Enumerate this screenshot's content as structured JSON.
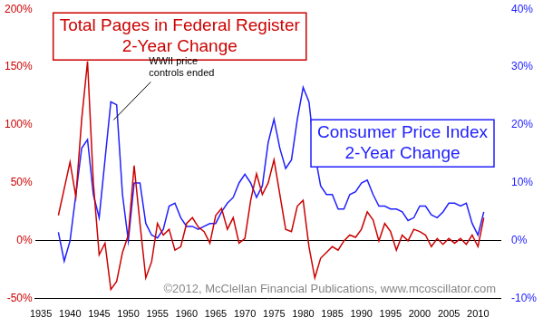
{
  "chart_data": {
    "type": "line",
    "x": [
      1938,
      1939,
      1940,
      1941,
      1942,
      1943,
      1944,
      1945,
      1946,
      1947,
      1948,
      1949,
      1950,
      1951,
      1952,
      1953,
      1954,
      1955,
      1956,
      1957,
      1958,
      1959,
      1960,
      1961,
      1962,
      1963,
      1964,
      1965,
      1966,
      1967,
      1968,
      1969,
      1970,
      1971,
      1972,
      1973,
      1974,
      1975,
      1976,
      1977,
      1978,
      1979,
      1980,
      1981,
      1982,
      1983,
      1984,
      1985,
      1986,
      1987,
      1988,
      1989,
      1990,
      1991,
      1992,
      1993,
      1994,
      1995,
      1996,
      1997,
      1998,
      1999,
      2000,
      2001,
      2002,
      2003,
      2004,
      2005,
      2006,
      2007,
      2008,
      2009,
      2010,
      2011
    ],
    "series": [
      {
        "name": "Total Pages in Federal Register 2-Year Change",
        "color": "#cc0000",
        "axis": "y",
        "values": [
          22,
          45,
          68,
          38,
          105,
          155,
          50,
          -12,
          -2,
          -42,
          -35,
          -10,
          5,
          65,
          15,
          -32,
          -18,
          15,
          5,
          10,
          -8,
          -5,
          15,
          20,
          12,
          8,
          -2,
          22,
          28,
          10,
          20,
          -2,
          2,
          35,
          58,
          40,
          50,
          70,
          40,
          10,
          8,
          30,
          35,
          -5,
          -32,
          -15,
          -10,
          -5,
          -8,
          0,
          5,
          3,
          10,
          25,
          18,
          0,
          15,
          8,
          -8,
          5,
          0,
          10,
          8,
          5,
          -5,
          2,
          -3,
          2,
          -2,
          2,
          -3,
          5,
          -5,
          20
        ]
      },
      {
        "name": "Consumer Price Index 2-Year Change",
        "color": "#2020ff",
        "axis": "y2",
        "values": [
          1.5,
          -3.5,
          0,
          8,
          16,
          17.5,
          8,
          4,
          14,
          24,
          23.5,
          8,
          0,
          10,
          10,
          3,
          1,
          0.5,
          2,
          6,
          6.5,
          4,
          2.5,
          2.5,
          2,
          2.5,
          3,
          3,
          5,
          6.5,
          7.5,
          10,
          11.5,
          10,
          7.5,
          9.5,
          17,
          21,
          16,
          12.5,
          14,
          21,
          26.5,
          24,
          15,
          9.5,
          8,
          8,
          5.5,
          5.5,
          8,
          8.5,
          10,
          10.5,
          8,
          6,
          6,
          5.5,
          5.5,
          5,
          3.5,
          4,
          6,
          6,
          4.5,
          4,
          5,
          6.5,
          6.5,
          6,
          6.5,
          3,
          1,
          5
        ]
      }
    ],
    "xlim": [
      1934,
      2014
    ],
    "xticks": [
      1935,
      1940,
      1945,
      1950,
      1955,
      1960,
      1965,
      1970,
      1975,
      1980,
      1985,
      1990,
      1995,
      2000,
      2005,
      2010
    ],
    "ylim": [
      -50,
      200
    ],
    "yticks": [
      {
        "value": -50,
        "label": "-50%"
      },
      {
        "value": 0,
        "label": "0%"
      },
      {
        "value": 50,
        "label": "50%"
      },
      {
        "value": 100,
        "label": "100%"
      },
      {
        "value": 150,
        "label": "150%"
      },
      {
        "value": 200,
        "label": "200%"
      }
    ],
    "y2lim": [
      -10,
      40
    ],
    "y2ticks": [
      {
        "value": -10,
        "label": "-10%"
      },
      {
        "value": 0,
        "label": "0%"
      },
      {
        "value": 10,
        "label": "10%"
      },
      {
        "value": 20,
        "label": "20%"
      },
      {
        "value": 30,
        "label": "30%"
      },
      {
        "value": 40,
        "label": "40%"
      }
    ],
    "annotations": [
      {
        "text": "WWII price controls ended",
        "x": 1947,
        "y": 24,
        "axis": "y2"
      },
      {
        "text": "©2012, McClellan Financial Publications, www.mcoscillator.com"
      }
    ]
  }
}
